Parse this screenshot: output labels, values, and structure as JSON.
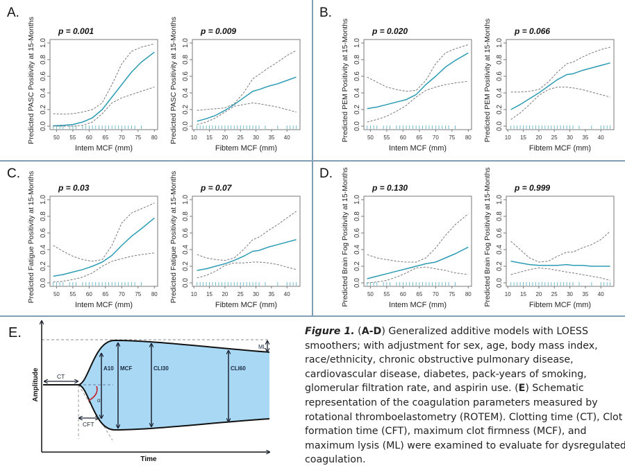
{
  "panels": [
    {
      "label": "A."
    },
    {
      "label": "B."
    },
    {
      "label": "C."
    },
    {
      "label": "D."
    }
  ],
  "colors": {
    "fit": "#2b9bb3",
    "ci": "#777777",
    "rug": "#5fb3c8",
    "fill": "#a9d8f5",
    "border": "#7f9db3",
    "alpha_arc": "#c0303a"
  },
  "chart_data": [
    {
      "type": "line",
      "panel": "A",
      "title": "p = 0.001",
      "xlabel": "Intem MCF (mm)",
      "ylabel": "Predicted PASC Positivity at 15-Months",
      "xlim": [
        48,
        81
      ],
      "ylim": [
        0,
        1
      ],
      "xticks": [
        "50",
        "55",
        "60",
        "65",
        "70",
        "75",
        "80"
      ],
      "yticks": [
        "0.0",
        "0.2",
        "0.4",
        "0.6",
        "0.8",
        "1.0"
      ],
      "x": [
        49,
        52,
        55,
        58,
        61,
        64,
        67,
        70,
        73,
        76,
        80
      ],
      "series": [
        {
          "name": "fit",
          "values": [
            0.005,
            0.01,
            0.02,
            0.05,
            0.1,
            0.2,
            0.35,
            0.5,
            0.65,
            0.77,
            0.89
          ]
        },
        {
          "name": "upper",
          "values": [
            0.15,
            0.145,
            0.15,
            0.17,
            0.2,
            0.28,
            0.5,
            0.75,
            0.9,
            0.95,
            0.99
          ]
        },
        {
          "name": "lower",
          "values": [
            0,
            0,
            0,
            0.01,
            0.05,
            0.15,
            0.28,
            0.34,
            0.38,
            0.42,
            0.47
          ]
        }
      ],
      "rug": [
        49,
        50,
        51,
        52,
        54,
        55,
        56,
        58,
        59,
        60,
        61,
        62,
        63,
        64,
        65,
        66,
        67,
        68,
        69,
        70,
        71,
        72,
        73,
        74,
        76
      ]
    },
    {
      "type": "line",
      "panel": "A",
      "title": "p = 0.009",
      "xlabel": "Fibtem MCF (mm)",
      "ylabel": "Predicted PASC Positivity at 15-Months",
      "xlim": [
        9.5,
        44.2
      ],
      "ylim": [
        0,
        1
      ],
      "xticks": [
        "10",
        "15",
        "20",
        "25",
        "30",
        "35",
        "40"
      ],
      "yticks": [
        "0.0",
        "0.2",
        "0.4",
        "0.6",
        "0.8",
        "1.0"
      ],
      "x": [
        11,
        14,
        17,
        20,
        23,
        26,
        29,
        31,
        34,
        37,
        40,
        43
      ],
      "series": [
        {
          "name": "fit",
          "values": [
            0.06,
            0.09,
            0.13,
            0.19,
            0.26,
            0.34,
            0.42,
            0.44,
            0.48,
            0.51,
            0.55,
            0.59
          ]
        },
        {
          "name": "upper",
          "values": [
            0.19,
            0.2,
            0.21,
            0.22,
            0.27,
            0.4,
            0.57,
            0.62,
            0.7,
            0.77,
            0.85,
            0.91
          ]
        },
        {
          "name": "lower",
          "values": [
            0.02,
            0.05,
            0.1,
            0.17,
            0.24,
            0.26,
            0.28,
            0.27,
            0.25,
            0.23,
            0.2,
            0.17
          ]
        }
      ],
      "rug": [
        11,
        12,
        13,
        14,
        15,
        16,
        17,
        18,
        19,
        20,
        21,
        22,
        23,
        24,
        25,
        26,
        27,
        28,
        29,
        30,
        31,
        33,
        37,
        40,
        41,
        42,
        43
      ]
    },
    {
      "type": "line",
      "panel": "B",
      "title": "p = 0.020",
      "xlabel": "Intem MCF (mm)",
      "ylabel": "Predicted PEM Positivity at 15-Months",
      "xlim": [
        48,
        81
      ],
      "ylim": [
        0,
        1
      ],
      "xticks": [
        "50",
        "55",
        "60",
        "65",
        "70",
        "75",
        "80"
      ],
      "yticks": [
        "0.0",
        "0.2",
        "0.4",
        "0.6",
        "0.8",
        "1.0"
      ],
      "x": [
        49,
        52,
        55,
        58,
        61,
        64,
        67,
        70,
        73,
        76,
        80
      ],
      "series": [
        {
          "name": "fit",
          "values": [
            0.21,
            0.23,
            0.26,
            0.29,
            0.32,
            0.38,
            0.5,
            0.6,
            0.71,
            0.79,
            0.88
          ]
        },
        {
          "name": "upper",
          "values": [
            0.59,
            0.53,
            0.47,
            0.44,
            0.42,
            0.43,
            0.55,
            0.75,
            0.88,
            0.93,
            0.98
          ]
        },
        {
          "name": "lower",
          "values": [
            0.05,
            0.08,
            0.12,
            0.18,
            0.25,
            0.35,
            0.43,
            0.47,
            0.5,
            0.52,
            0.54
          ]
        }
      ],
      "rug": [
        49,
        50,
        51,
        52,
        54,
        55,
        56,
        58,
        59,
        60,
        61,
        62,
        63,
        64,
        65,
        66,
        67,
        68,
        69,
        70,
        71,
        72,
        73,
        74,
        76
      ]
    },
    {
      "type": "line",
      "panel": "B",
      "title": "p = 0.066",
      "xlabel": "Fibtem MCF (mm)",
      "ylabel": "Predicted PEM Positivity at 15-Months",
      "xlim": [
        9.5,
        44.2
      ],
      "ylim": [
        0,
        1
      ],
      "xticks": [
        "10",
        "15",
        "20",
        "25",
        "30",
        "35",
        "40"
      ],
      "yticks": [
        "0.0",
        "0.2",
        "0.4",
        "0.6",
        "0.8",
        "1.0"
      ],
      "x": [
        11,
        14,
        17,
        20,
        23,
        26,
        29,
        31,
        34,
        37,
        40,
        43
      ],
      "series": [
        {
          "name": "fit",
          "values": [
            0.2,
            0.26,
            0.33,
            0.4,
            0.48,
            0.56,
            0.62,
            0.63,
            0.67,
            0.7,
            0.73,
            0.76
          ]
        },
        {
          "name": "upper",
          "values": [
            0.41,
            0.41,
            0.42,
            0.44,
            0.53,
            0.65,
            0.75,
            0.77,
            0.83,
            0.88,
            0.92,
            0.95
          ]
        },
        {
          "name": "lower",
          "values": [
            0.08,
            0.16,
            0.26,
            0.37,
            0.44,
            0.47,
            0.47,
            0.46,
            0.44,
            0.41,
            0.38,
            0.35
          ]
        }
      ],
      "rug": [
        11,
        12,
        13,
        14,
        15,
        16,
        17,
        18,
        19,
        20,
        21,
        22,
        23,
        24,
        25,
        26,
        27,
        28,
        29,
        30,
        31,
        33,
        37,
        40,
        41,
        42,
        43
      ]
    },
    {
      "type": "line",
      "panel": "C",
      "title": "p = 0.03",
      "xlabel": "Intem MCF (mm)",
      "ylabel": "Predicted Fatigue Positivity at 15-Months",
      "xlim": [
        48,
        81
      ],
      "ylim": [
        0,
        1
      ],
      "xticks": [
        "50",
        "55",
        "60",
        "65",
        "70",
        "75",
        "80"
      ],
      "yticks": [
        "0.0",
        "0.2",
        "0.4",
        "0.6",
        "0.8",
        "1.0"
      ],
      "x": [
        49,
        52,
        55,
        58,
        61,
        64,
        67,
        70,
        73,
        76,
        80
      ],
      "series": [
        {
          "name": "fit",
          "values": [
            0.08,
            0.1,
            0.13,
            0.16,
            0.2,
            0.25,
            0.33,
            0.45,
            0.56,
            0.65,
            0.78
          ]
        },
        {
          "name": "upper",
          "values": [
            0.45,
            0.38,
            0.32,
            0.28,
            0.26,
            0.28,
            0.45,
            0.72,
            0.84,
            0.89,
            0.96
          ]
        },
        {
          "name": "lower",
          "values": [
            0.01,
            0.02,
            0.04,
            0.07,
            0.12,
            0.2,
            0.26,
            0.29,
            0.32,
            0.34,
            0.36
          ]
        }
      ],
      "rug": [
        49,
        50,
        51,
        52,
        54,
        55,
        56,
        58,
        59,
        60,
        61,
        62,
        63,
        64,
        65,
        66,
        67,
        68,
        69,
        70,
        71,
        72,
        73,
        74,
        76
      ]
    },
    {
      "type": "line",
      "panel": "C",
      "title": "p = 0.07",
      "xlabel": "Fibtem MCF (mm)",
      "ylabel": "Predicted Fatigue Positivity at 15-Months",
      "xlim": [
        9.5,
        44.2
      ],
      "ylim": [
        0,
        1
      ],
      "xticks": [
        "10",
        "15",
        "20",
        "25",
        "30",
        "35",
        "40"
      ],
      "yticks": [
        "0.0",
        "0.2",
        "0.4",
        "0.6",
        "0.8",
        "1.0"
      ],
      "x": [
        11,
        14,
        17,
        20,
        23,
        26,
        29,
        31,
        34,
        37,
        40,
        43
      ],
      "series": [
        {
          "name": "fit",
          "values": [
            0.15,
            0.17,
            0.2,
            0.23,
            0.27,
            0.32,
            0.38,
            0.39,
            0.43,
            0.46,
            0.49,
            0.52
          ]
        },
        {
          "name": "upper",
          "values": [
            0.34,
            0.3,
            0.28,
            0.27,
            0.3,
            0.4,
            0.52,
            0.55,
            0.63,
            0.7,
            0.78,
            0.86
          ]
        },
        {
          "name": "lower",
          "values": [
            0.06,
            0.09,
            0.14,
            0.21,
            0.24,
            0.24,
            0.25,
            0.25,
            0.24,
            0.22,
            0.19,
            0.16
          ]
        }
      ],
      "rug": [
        11,
        12,
        13,
        14,
        15,
        16,
        17,
        18,
        19,
        20,
        21,
        22,
        23,
        24,
        25,
        26,
        27,
        28,
        29,
        30,
        31,
        33,
        37,
        40,
        41,
        42,
        43
      ]
    },
    {
      "type": "line",
      "panel": "D",
      "title": "p = 0.130",
      "xlabel": "Intem MCF (mm)",
      "ylabel": "Predicted Brain Fog Positivity at 15-Months",
      "xlim": [
        48,
        81
      ],
      "ylim": [
        0,
        1
      ],
      "xticks": [
        "50",
        "55",
        "60",
        "65",
        "70",
        "75",
        "80"
      ],
      "yticks": [
        "0.0",
        "0.2",
        "0.4",
        "0.6",
        "0.8",
        "1.0"
      ],
      "x": [
        49,
        52,
        55,
        58,
        61,
        64,
        67,
        70,
        73,
        76,
        80
      ],
      "series": [
        {
          "name": "fit",
          "values": [
            0.05,
            0.08,
            0.11,
            0.14,
            0.17,
            0.2,
            0.23,
            0.25,
            0.3,
            0.35,
            0.43
          ]
        },
        {
          "name": "upper",
          "values": [
            0.34,
            0.3,
            0.28,
            0.26,
            0.25,
            0.25,
            0.3,
            0.42,
            0.57,
            0.7,
            0.83
          ]
        },
        {
          "name": "lower",
          "values": [
            0,
            0.01,
            0.03,
            0.07,
            0.12,
            0.18,
            0.19,
            0.17,
            0.15,
            0.12,
            0.1
          ]
        }
      ],
      "rug": [
        49,
        50,
        51,
        52,
        54,
        55,
        56,
        58,
        59,
        60,
        61,
        62,
        63,
        64,
        65,
        66,
        67,
        68,
        69,
        70,
        71,
        72,
        73,
        74,
        76
      ]
    },
    {
      "type": "line",
      "panel": "D",
      "title": "p = 0.999",
      "xlabel": "Fibtem MCF (mm)",
      "ylabel": "Predicted Brain Fog Positivity at 15-Months",
      "xlim": [
        9.5,
        44.2
      ],
      "ylim": [
        0,
        1
      ],
      "xticks": [
        "10",
        "15",
        "20",
        "25",
        "30",
        "35",
        "40"
      ],
      "yticks": [
        "0.0",
        "0.2",
        "0.4",
        "0.6",
        "0.8",
        "1.0"
      ],
      "x": [
        11,
        14,
        17,
        20,
        23,
        26,
        29,
        31,
        34,
        37,
        40,
        43
      ],
      "series": [
        {
          "name": "fit",
          "values": [
            0.26,
            0.24,
            0.22,
            0.21,
            0.21,
            0.21,
            0.22,
            0.21,
            0.21,
            0.2,
            0.2,
            0.2
          ]
        },
        {
          "name": "upper",
          "values": [
            0.5,
            0.4,
            0.3,
            0.25,
            0.26,
            0.32,
            0.37,
            0.37,
            0.42,
            0.46,
            0.52,
            0.62
          ]
        },
        {
          "name": "lower",
          "values": [
            0.1,
            0.13,
            0.16,
            0.18,
            0.17,
            0.15,
            0.13,
            0.12,
            0.1,
            0.08,
            0.06,
            0.03
          ]
        }
      ],
      "rug": [
        11,
        12,
        13,
        14,
        15,
        16,
        17,
        18,
        19,
        20,
        21,
        22,
        23,
        24,
        25,
        26,
        27,
        28,
        29,
        30,
        31,
        33,
        37,
        40,
        41,
        42,
        43
      ]
    }
  ],
  "diagram": {
    "label": "E.",
    "ylabel": "Amplitude",
    "xlabel": "Time",
    "ct": "CT",
    "cft": "CFT",
    "a10": "A10",
    "mcf": "MCF",
    "cli30": "CLI30",
    "cli60": "CLI60",
    "ml": "ML",
    "alpha": "α"
  },
  "caption": {
    "lines": [
      [
        {
          "t": "Figure 1.",
          "s": "bi"
        },
        {
          "t": " (",
          "s": ""
        },
        {
          "t": "A-D",
          "s": "b"
        },
        {
          "t": ") Generalized additive models with LOESS",
          "s": ""
        }
      ],
      [
        {
          "t": "smoothers; with adjustment for sex, age, body mass index,",
          "s": ""
        }
      ],
      [
        {
          "t": "race/ethnicity, chronic obstructive pulmonary disease,",
          "s": ""
        }
      ],
      [
        {
          "t": "cardiovascular disease, diabetes, pack-years of smoking,",
          "s": ""
        }
      ],
      [
        {
          "t": "glomerular filtration rate, and aspirin use. (",
          "s": ""
        },
        {
          "t": "E",
          "s": "b"
        },
        {
          "t": ") Schematic",
          "s": ""
        }
      ],
      [
        {
          "t": "representation of the coagulation parameters measured by",
          "s": ""
        }
      ],
      [
        {
          "t": "rotational thromboelastometry (ROTEM). Clotting time (CT), Clot",
          "s": ""
        }
      ],
      [
        {
          "t": "formation time (CFT), maximum clot firmness (MCF), and",
          "s": ""
        }
      ],
      [
        {
          "t": "maximum lysis (ML) were examined to evaluate for dysregulated",
          "s": ""
        }
      ],
      [
        {
          "t": "coagulation.",
          "s": ""
        }
      ]
    ]
  }
}
